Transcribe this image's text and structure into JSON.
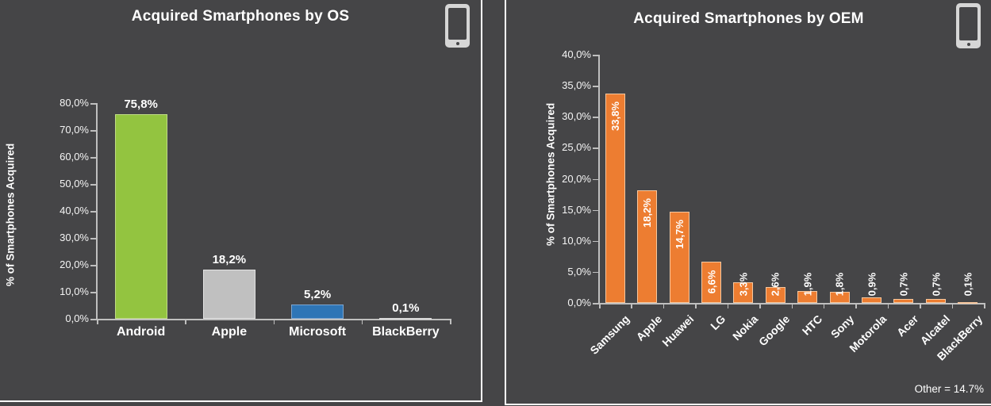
{
  "page": {
    "background": "#454547",
    "panel_border_color": "#FFFFFF",
    "axis_color": "#BFBFBF",
    "text_color": "#FFFFFF"
  },
  "icons": {
    "left_panel": "smartphone-icon",
    "right_panel": "smartphone-icon"
  },
  "chart_data": [
    {
      "type": "bar",
      "title": "Acquired Smartphones by OS",
      "ylabel": "% of Smartphones Acquired",
      "xlabel": "",
      "categories": [
        "Android",
        "Apple",
        "Microsoft",
        "BlackBerry"
      ],
      "values": [
        75.8,
        18.2,
        5.2,
        0.1
      ],
      "value_labels": [
        "75,8%",
        "18,2%",
        "5,2%",
        "0,1%"
      ],
      "bar_colors": [
        "#93C440",
        "#C0C0C0",
        "#2E75B6",
        "#BFBFBF"
      ],
      "bar_borders": [
        "#C0DC86",
        "#E3E3E3",
        "#7EA6D0",
        "#D9D9D9"
      ],
      "ylim": [
        0,
        80
      ],
      "ytick_step": 10,
      "ytick_labels": [
        "0,0%",
        "10,0%",
        "20,0%",
        "30,0%",
        "40,0%",
        "50,0%",
        "60,0%",
        "70,0%",
        "80,0%"
      ],
      "grid": false,
      "legend": "none"
    },
    {
      "type": "bar",
      "title": "Acquired Smartphones by OEM",
      "ylabel": "% of Smartphones Acquired",
      "xlabel": "",
      "categories": [
        "Samsung",
        "Apple",
        "Huawei",
        "LG",
        "Nokia",
        "Google",
        "HTC",
        "Sony",
        "Motorola",
        "Acer",
        "Alcatel",
        "BlackBerry"
      ],
      "values": [
        33.8,
        18.2,
        14.7,
        6.6,
        3.3,
        2.6,
        1.9,
        1.8,
        0.9,
        0.7,
        0.7,
        0.1
      ],
      "value_labels": [
        "33,8%",
        "18,2%",
        "14,7%",
        "6,6%",
        "3,3%",
        "2,6%",
        "1,9%",
        "1,8%",
        "0,9%",
        "0,7%",
        "0,7%",
        "0,1%"
      ],
      "bar_color": "#ED7D31",
      "bar_border": "#F6C79E",
      "ylim": [
        0,
        40
      ],
      "ytick_step": 5,
      "ytick_labels": [
        "0,0%",
        "5,0%",
        "10,0%",
        "15,0%",
        "20,0%",
        "25,0%",
        "30,0%",
        "35,0%",
        "40,0%"
      ],
      "grid": false,
      "legend": "none",
      "annotation": "Other = 14.7%"
    }
  ]
}
